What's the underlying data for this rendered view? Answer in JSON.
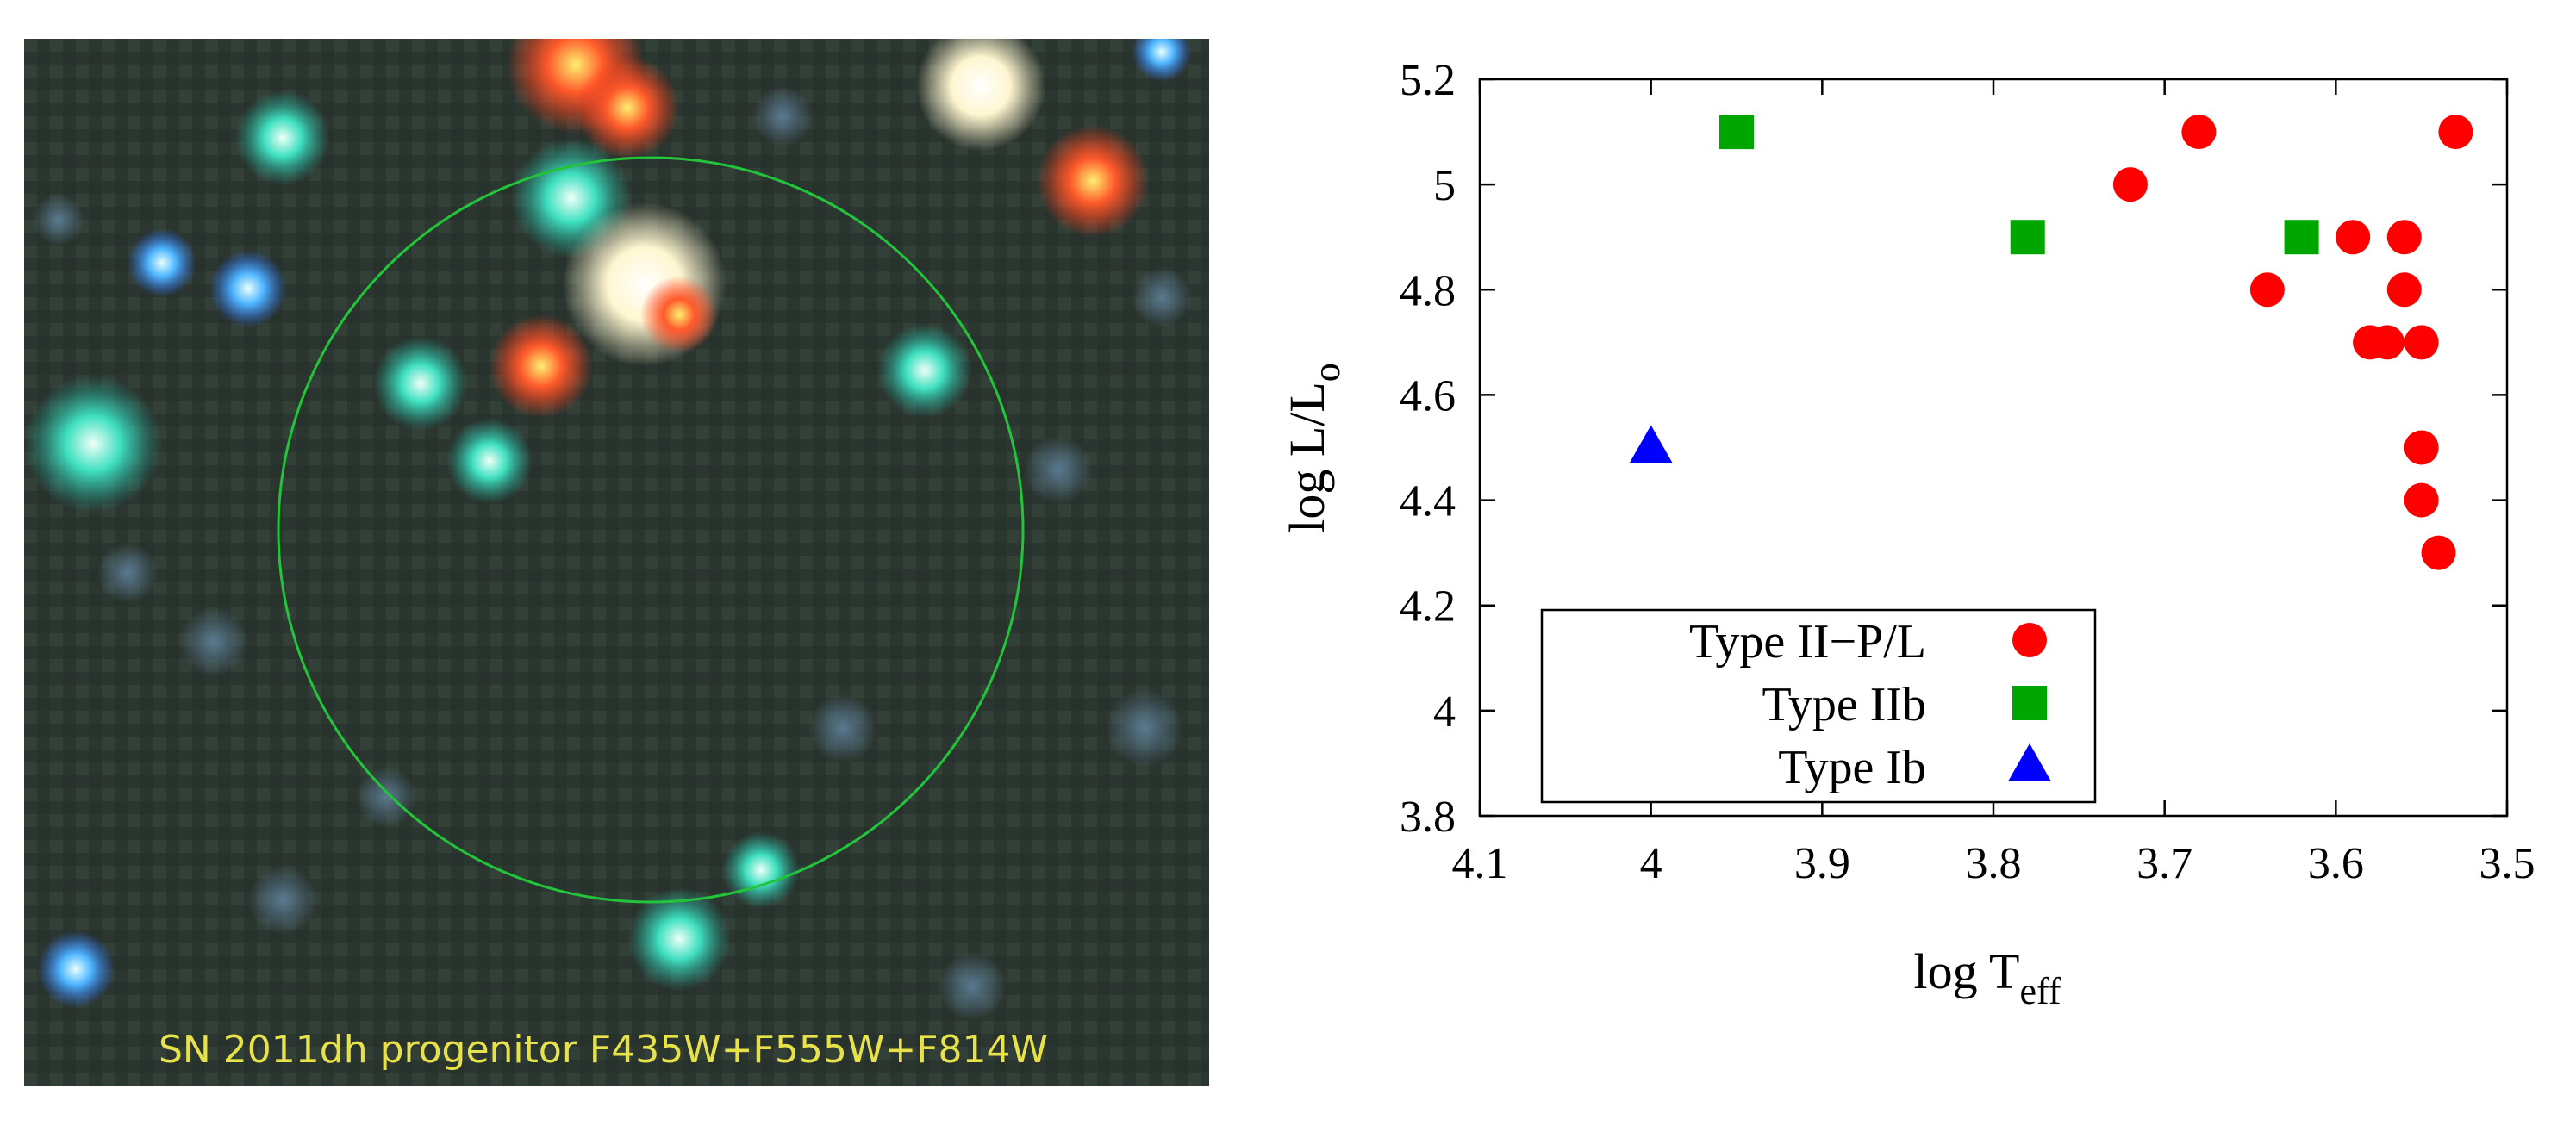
{
  "image_panel": {
    "caption": "SN 2011dh progenitor F435W+F555W+F814W",
    "caption_color": "#e8e24a",
    "circle_color": "#22c43a",
    "background_color": "#2c3630"
  },
  "chart_data": {
    "type": "scatter",
    "xlabel": {
      "main": "log T",
      "sub": "eff"
    },
    "ylabel": {
      "main": "log L/L",
      "sub": "o"
    },
    "xlim": [
      4.1,
      3.5
    ],
    "ylim": [
      3.8,
      5.2
    ],
    "x_reversed": true,
    "xticks": [
      "4.1",
      "4",
      "3.9",
      "3.8",
      "3.7",
      "3.6",
      "3.5"
    ],
    "yticks": [
      "3.8",
      "4",
      "4.2",
      "4.4",
      "4.6",
      "4.8",
      "5",
      "5.2"
    ],
    "grid": false,
    "legend_position": "bottom-left",
    "series": [
      {
        "name": "Type II−P/L",
        "marker": "circle",
        "color": "#ff0000",
        "points": [
          [
            3.53,
            5.1
          ],
          [
            3.68,
            5.1
          ],
          [
            3.72,
            5.0
          ],
          [
            3.59,
            4.9
          ],
          [
            3.56,
            4.9
          ],
          [
            3.64,
            4.8
          ],
          [
            3.56,
            4.8
          ],
          [
            3.58,
            4.7
          ],
          [
            3.57,
            4.7
          ],
          [
            3.55,
            4.7
          ],
          [
            3.55,
            4.5
          ],
          [
            3.55,
            4.4
          ],
          [
            3.54,
            4.3
          ]
        ]
      },
      {
        "name": "Type IIb",
        "marker": "square",
        "color": "#00a600",
        "points": [
          [
            3.95,
            5.1
          ],
          [
            3.78,
            4.9
          ],
          [
            3.62,
            4.9
          ]
        ]
      },
      {
        "name": "Type Ib",
        "marker": "triangle",
        "color": "#0000ff",
        "points": [
          [
            4.0,
            4.5
          ]
        ]
      }
    ]
  }
}
